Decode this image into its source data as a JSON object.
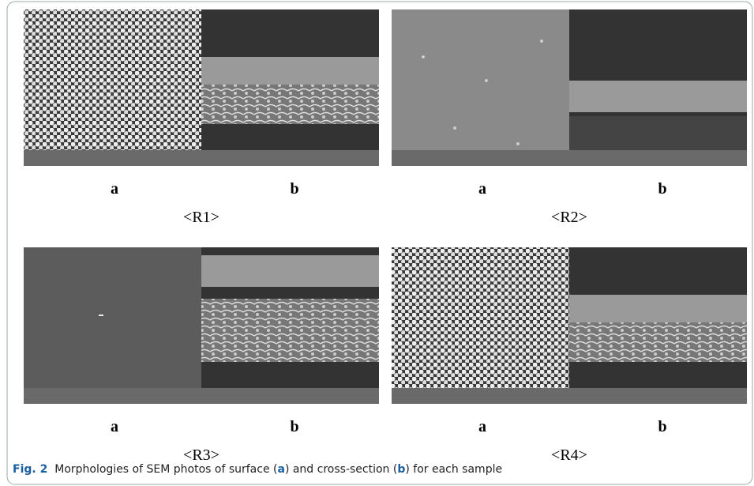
{
  "panels": [
    {
      "label_a": "a",
      "label_b": "b",
      "name": "<R1>"
    },
    {
      "label_a": "a",
      "label_b": "b",
      "name": "<R2>"
    },
    {
      "label_a": "a",
      "label_b": "b",
      "name": "<R3>"
    },
    {
      "label_a": "a",
      "label_b": "b",
      "name": "<R4>"
    }
  ],
  "caption": {
    "label": "Fig. 2",
    "parts": [
      "Morphologies of SEM photos of surface (",
      "a",
      ") and cross-section (",
      "b",
      ") for each sample"
    ]
  }
}
